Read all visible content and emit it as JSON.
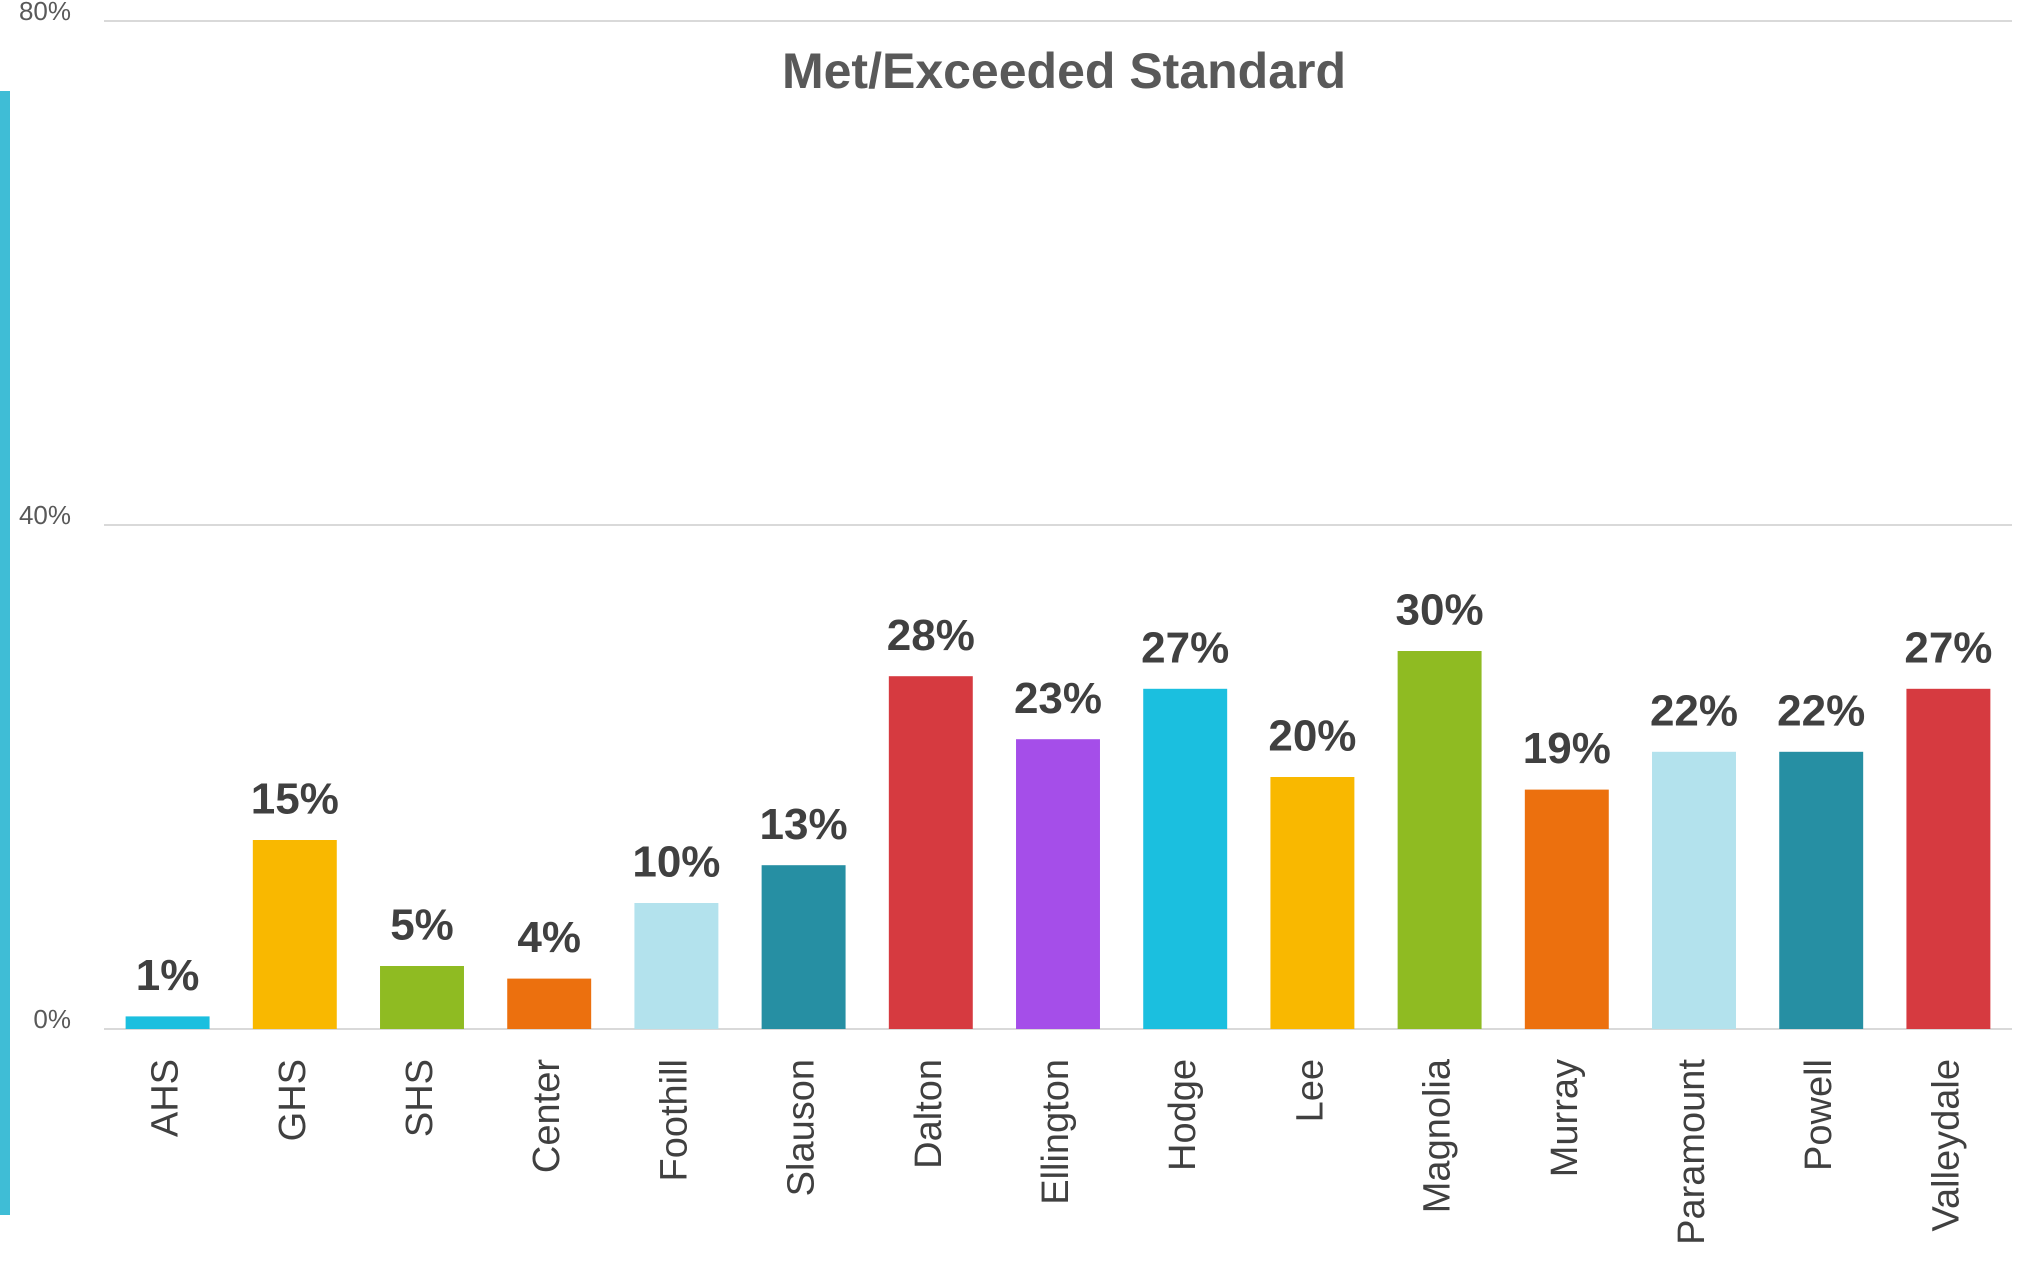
{
  "chart_data": {
    "type": "bar",
    "title": "Met/Exceeded Standard",
    "categories": [
      "AHS",
      "GHS",
      "SHS",
      "Center",
      "Foothill",
      "Slauson",
      "Dalton",
      "Ellington",
      "Hodge",
      "Lee",
      "Magnolia",
      "Murray",
      "Paramount",
      "Powell",
      "Valleydale"
    ],
    "values": [
      1,
      15,
      5,
      4,
      10,
      13,
      28,
      23,
      27,
      20,
      30,
      19,
      22,
      22,
      27
    ],
    "value_labels": [
      "1%",
      "15%",
      "5%",
      "4%",
      "10%",
      "13%",
      "28%",
      "23%",
      "27%",
      "20%",
      "30%",
      "19%",
      "22%",
      "22%",
      "27%"
    ],
    "colors": [
      "#1bbfdf",
      "#f9b800",
      "#8fbb22",
      "#ec700e",
      "#b3e2ed",
      "#268fa3",
      "#d63a40",
      "#a54ee9",
      "#1bbfdf",
      "#f9b800",
      "#8fbb22",
      "#ec700e",
      "#b3e2ed",
      "#268fa3",
      "#d63a40"
    ],
    "ylim": [
      0,
      80
    ],
    "yticks": [
      {
        "value": 0,
        "label": "0%"
      },
      {
        "value": 40,
        "label": "40%"
      },
      {
        "value": 80,
        "label": "80%"
      }
    ],
    "grid": true
  }
}
